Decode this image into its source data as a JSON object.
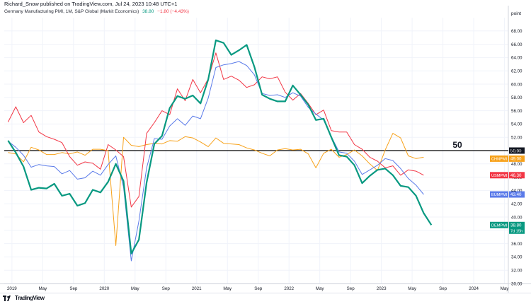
{
  "header": {
    "publisher": "Richard_Snow published on TradingView.com, Jul 24, 2023 10:48 UTC+1",
    "symbol_line": "Germany Manufacturing PMI, 1M, S&P Global (Markit Economics)",
    "value": "38.80",
    "change": "−1.80 (−4.43%)"
  },
  "price_scale": {
    "header": "point"
  },
  "footer": {
    "brand": "TradingView",
    "logo_icon": "tradingview-logo-icon"
  },
  "chart_data": {
    "type": "line",
    "y_range": [
      30,
      70
    ],
    "y_ticks": [
      "30.00",
      "32.00",
      "34.00",
      "36.00",
      "38.00",
      "40.00",
      "42.00",
      "44.00",
      "46.00",
      "48.00",
      "50.00",
      "52.00",
      "54.00",
      "56.00",
      "58.00",
      "60.00",
      "62.00",
      "64.00",
      "66.00",
      "68.00"
    ],
    "x_range": [
      "2018-12",
      "2024-05"
    ],
    "x_ticks": [
      {
        "label": "2019",
        "date": "2019-01"
      },
      {
        "label": "May",
        "date": "2019-05"
      },
      {
        "label": "Sep",
        "date": "2019-09"
      },
      {
        "label": "2020",
        "date": "2020-01"
      },
      {
        "label": "May",
        "date": "2020-05"
      },
      {
        "label": "Sep",
        "date": "2020-09"
      },
      {
        "label": "2021",
        "date": "2021-01"
      },
      {
        "label": "May",
        "date": "2021-05"
      },
      {
        "label": "Sep",
        "date": "2021-09"
      },
      {
        "label": "2022",
        "date": "2022-01"
      },
      {
        "label": "May",
        "date": "2022-05"
      },
      {
        "label": "Sep",
        "date": "2022-09"
      },
      {
        "label": "2023",
        "date": "2023-01"
      },
      {
        "label": "May",
        "date": "2023-05"
      },
      {
        "label": "Sep",
        "date": "2023-09"
      },
      {
        "label": "2024",
        "date": "2024-01"
      },
      {
        "label": "May",
        "date": "2024-05"
      }
    ],
    "horizontal_line": {
      "value": 50,
      "label": "50",
      "color": "#000000"
    },
    "series": [
      {
        "name": "CHNPMI",
        "color": "#f7a21b",
        "last_label": "49.00",
        "width": 1,
        "points": [
          [
            "2018-12",
            49.7
          ],
          [
            "2019-01",
            49.5
          ],
          [
            "2019-02",
            48.3
          ],
          [
            "2019-03",
            50.5
          ],
          [
            "2019-04",
            50.1
          ],
          [
            "2019-05",
            49.4
          ],
          [
            "2019-06",
            49.4
          ],
          [
            "2019-07",
            49.7
          ],
          [
            "2019-08",
            49.5
          ],
          [
            "2019-09",
            49.8
          ],
          [
            "2019-10",
            49.3
          ],
          [
            "2019-11",
            50.2
          ],
          [
            "2019-12",
            50.2
          ],
          [
            "2020-01",
            50.0
          ],
          [
            "2020-02",
            35.7
          ],
          [
            "2020-03",
            52.0
          ],
          [
            "2020-04",
            50.8
          ],
          [
            "2020-05",
            50.6
          ],
          [
            "2020-06",
            50.9
          ],
          [
            "2020-07",
            51.1
          ],
          [
            "2020-08",
            51.0
          ],
          [
            "2020-09",
            51.5
          ],
          [
            "2020-10",
            51.4
          ],
          [
            "2020-11",
            52.1
          ],
          [
            "2020-12",
            51.9
          ],
          [
            "2021-01",
            51.3
          ],
          [
            "2021-02",
            50.6
          ],
          [
            "2021-03",
            51.9
          ],
          [
            "2021-04",
            51.1
          ],
          [
            "2021-05",
            51.0
          ],
          [
            "2021-06",
            50.9
          ],
          [
            "2021-07",
            50.4
          ],
          [
            "2021-08",
            50.1
          ],
          [
            "2021-09",
            49.6
          ],
          [
            "2021-10",
            49.2
          ],
          [
            "2021-11",
            50.1
          ],
          [
            "2021-12",
            50.3
          ],
          [
            "2022-01",
            50.1
          ],
          [
            "2022-02",
            50.2
          ],
          [
            "2022-03",
            49.5
          ],
          [
            "2022-04",
            47.4
          ],
          [
            "2022-05",
            49.6
          ],
          [
            "2022-06",
            50.2
          ],
          [
            "2022-07",
            49.0
          ],
          [
            "2022-08",
            49.4
          ],
          [
            "2022-09",
            50.1
          ],
          [
            "2022-10",
            49.2
          ],
          [
            "2022-11",
            48.0
          ],
          [
            "2022-12",
            47.0
          ],
          [
            "2023-01",
            50.1
          ],
          [
            "2023-02",
            52.6
          ],
          [
            "2023-03",
            51.9
          ],
          [
            "2023-04",
            49.2
          ],
          [
            "2023-05",
            48.8
          ],
          [
            "2023-06",
            49.0
          ]
        ]
      },
      {
        "name": "USMPMI",
        "color": "#f23645",
        "last_label": "46.30",
        "width": 1,
        "points": [
          [
            "2018-12",
            54.3
          ],
          [
            "2019-01",
            56.6
          ],
          [
            "2019-02",
            54.2
          ],
          [
            "2019-03",
            55.3
          ],
          [
            "2019-04",
            52.8
          ],
          [
            "2019-05",
            52.1
          ],
          [
            "2019-06",
            51.7
          ],
          [
            "2019-07",
            51.2
          ],
          [
            "2019-08",
            49.1
          ],
          [
            "2019-09",
            47.8
          ],
          [
            "2019-10",
            48.3
          ],
          [
            "2019-11",
            48.1
          ],
          [
            "2019-12",
            47.2
          ],
          [
            "2020-01",
            50.9
          ],
          [
            "2020-02",
            50.1
          ],
          [
            "2020-03",
            49.1
          ],
          [
            "2020-04",
            41.5
          ],
          [
            "2020-05",
            43.1
          ],
          [
            "2020-06",
            52.6
          ],
          [
            "2020-07",
            54.2
          ],
          [
            "2020-08",
            56.0
          ],
          [
            "2020-09",
            55.4
          ],
          [
            "2020-10",
            59.3
          ],
          [
            "2020-11",
            57.5
          ],
          [
            "2020-12",
            60.7
          ],
          [
            "2021-01",
            58.7
          ],
          [
            "2021-02",
            60.8
          ],
          [
            "2021-03",
            64.7
          ],
          [
            "2021-04",
            60.7
          ],
          [
            "2021-05",
            61.2
          ],
          [
            "2021-06",
            60.6
          ],
          [
            "2021-07",
            59.5
          ],
          [
            "2021-08",
            59.9
          ],
          [
            "2021-09",
            61.1
          ],
          [
            "2021-10",
            60.8
          ],
          [
            "2021-11",
            61.1
          ],
          [
            "2021-12",
            58.8
          ],
          [
            "2022-01",
            57.6
          ],
          [
            "2022-02",
            58.6
          ],
          [
            "2022-03",
            57.1
          ],
          [
            "2022-04",
            55.4
          ],
          [
            "2022-05",
            56.1
          ],
          [
            "2022-06",
            53.0
          ],
          [
            "2022-07",
            52.8
          ],
          [
            "2022-08",
            52.8
          ],
          [
            "2022-09",
            50.9
          ],
          [
            "2022-10",
            50.2
          ],
          [
            "2022-11",
            49.0
          ],
          [
            "2022-12",
            48.4
          ],
          [
            "2023-01",
            47.4
          ],
          [
            "2023-02",
            47.7
          ],
          [
            "2023-03",
            46.3
          ],
          [
            "2023-04",
            47.1
          ],
          [
            "2023-05",
            46.9
          ],
          [
            "2023-06",
            46.3
          ]
        ]
      },
      {
        "name": "EUMPMI",
        "color": "#5b7be9",
        "last_label": "43.40",
        "width": 1,
        "points": [
          [
            "2018-12",
            51.4
          ],
          [
            "2019-01",
            50.5
          ],
          [
            "2019-02",
            49.3
          ],
          [
            "2019-03",
            47.5
          ],
          [
            "2019-04",
            47.9
          ],
          [
            "2019-05",
            47.7
          ],
          [
            "2019-06",
            47.6
          ],
          [
            "2019-07",
            46.5
          ],
          [
            "2019-08",
            47.0
          ],
          [
            "2019-09",
            45.7
          ],
          [
            "2019-10",
            45.9
          ],
          [
            "2019-11",
            46.9
          ],
          [
            "2019-12",
            46.3
          ],
          [
            "2020-01",
            47.9
          ],
          [
            "2020-02",
            49.2
          ],
          [
            "2020-03",
            44.5
          ],
          [
            "2020-04",
            33.4
          ],
          [
            "2020-05",
            39.4
          ],
          [
            "2020-06",
            47.4
          ],
          [
            "2020-07",
            51.8
          ],
          [
            "2020-08",
            51.7
          ],
          [
            "2020-09",
            53.7
          ],
          [
            "2020-10",
            54.8
          ],
          [
            "2020-11",
            53.8
          ],
          [
            "2020-12",
            55.2
          ],
          [
            "2021-01",
            54.8
          ],
          [
            "2021-02",
            57.9
          ],
          [
            "2021-03",
            62.5
          ],
          [
            "2021-04",
            62.9
          ],
          [
            "2021-05",
            63.1
          ],
          [
            "2021-06",
            63.4
          ],
          [
            "2021-07",
            62.8
          ],
          [
            "2021-08",
            61.4
          ],
          [
            "2021-09",
            58.6
          ],
          [
            "2021-10",
            58.3
          ],
          [
            "2021-11",
            58.4
          ],
          [
            "2021-12",
            58.0
          ],
          [
            "2022-01",
            58.7
          ],
          [
            "2022-02",
            58.2
          ],
          [
            "2022-03",
            56.5
          ],
          [
            "2022-04",
            55.5
          ],
          [
            "2022-05",
            54.6
          ],
          [
            "2022-06",
            52.1
          ],
          [
            "2022-07",
            49.8
          ],
          [
            "2022-08",
            49.6
          ],
          [
            "2022-09",
            48.4
          ],
          [
            "2022-10",
            46.4
          ],
          [
            "2022-11",
            47.1
          ],
          [
            "2022-12",
            47.8
          ],
          [
            "2023-01",
            48.8
          ],
          [
            "2023-02",
            48.5
          ],
          [
            "2023-03",
            47.3
          ],
          [
            "2023-04",
            45.8
          ],
          [
            "2023-05",
            44.8
          ],
          [
            "2023-06",
            43.4
          ]
        ]
      },
      {
        "name": "DEMPMI",
        "color": "#089981",
        "last_label": "38.80",
        "extra_label": "7d 15h",
        "width": 2.2,
        "points": [
          [
            "2018-12",
            51.5
          ],
          [
            "2019-01",
            49.7
          ],
          [
            "2019-02",
            47.6
          ],
          [
            "2019-03",
            44.1
          ],
          [
            "2019-04",
            44.4
          ],
          [
            "2019-05",
            44.3
          ],
          [
            "2019-06",
            45.0
          ],
          [
            "2019-07",
            43.2
          ],
          [
            "2019-08",
            43.5
          ],
          [
            "2019-09",
            41.7
          ],
          [
            "2019-10",
            42.1
          ],
          [
            "2019-11",
            44.1
          ],
          [
            "2019-12",
            43.7
          ],
          [
            "2020-01",
            45.3
          ],
          [
            "2020-02",
            48.0
          ],
          [
            "2020-03",
            45.4
          ],
          [
            "2020-04",
            34.5
          ],
          [
            "2020-05",
            36.6
          ],
          [
            "2020-06",
            45.2
          ],
          [
            "2020-07",
            51.0
          ],
          [
            "2020-08",
            52.2
          ],
          [
            "2020-09",
            56.4
          ],
          [
            "2020-10",
            58.2
          ],
          [
            "2020-11",
            57.8
          ],
          [
            "2020-12",
            58.3
          ],
          [
            "2021-01",
            57.1
          ],
          [
            "2021-02",
            60.7
          ],
          [
            "2021-03",
            66.6
          ],
          [
            "2021-04",
            66.2
          ],
          [
            "2021-05",
            64.4
          ],
          [
            "2021-06",
            65.1
          ],
          [
            "2021-07",
            65.9
          ],
          [
            "2021-08",
            62.6
          ],
          [
            "2021-09",
            58.4
          ],
          [
            "2021-10",
            57.8
          ],
          [
            "2021-11",
            57.4
          ],
          [
            "2021-12",
            57.4
          ],
          [
            "2022-01",
            59.8
          ],
          [
            "2022-02",
            58.4
          ],
          [
            "2022-03",
            56.9
          ],
          [
            "2022-04",
            54.6
          ],
          [
            "2022-05",
            54.8
          ],
          [
            "2022-06",
            52.0
          ],
          [
            "2022-07",
            49.3
          ],
          [
            "2022-08",
            49.1
          ],
          [
            "2022-09",
            47.8
          ],
          [
            "2022-10",
            45.1
          ],
          [
            "2022-11",
            46.2
          ],
          [
            "2022-12",
            47.1
          ],
          [
            "2023-01",
            47.3
          ],
          [
            "2023-02",
            46.3
          ],
          [
            "2023-03",
            44.7
          ],
          [
            "2023-04",
            44.5
          ],
          [
            "2023-05",
            43.2
          ],
          [
            "2023-06",
            40.6
          ],
          [
            "2023-07",
            38.8
          ]
        ]
      }
    ]
  }
}
